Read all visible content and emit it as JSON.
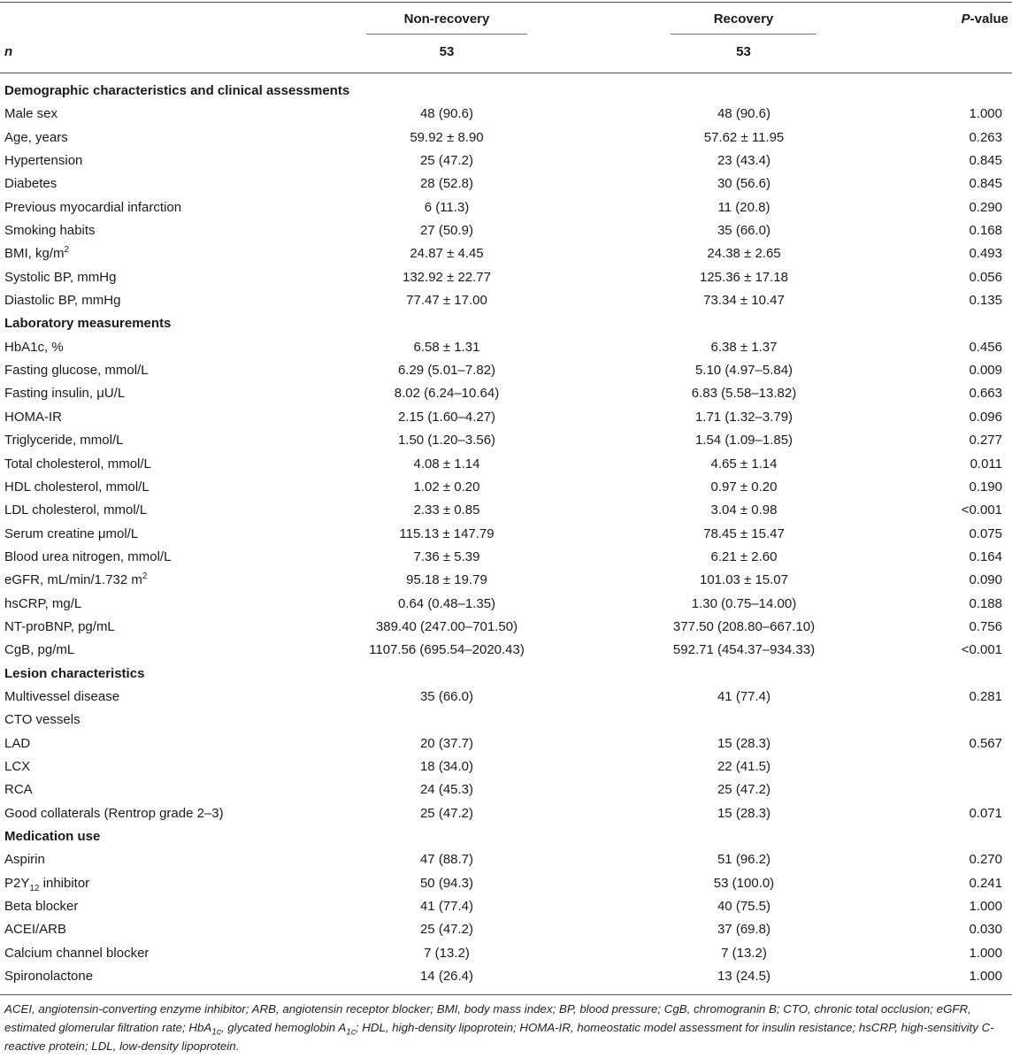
{
  "header": {
    "col_nonrecovery": "Non-recovery",
    "col_recovery": "Recovery",
    "col_p_italic": "P",
    "col_p_rest": "-value"
  },
  "n_row": {
    "label": "n",
    "nonrecovery": "53",
    "recovery": "53"
  },
  "rows": [
    {
      "section": true,
      "label": "Demographic characteristics and clinical assessments"
    },
    {
      "label": "Male sex",
      "nonrecovery": "48 (90.6)",
      "recovery": "48 (90.6)",
      "p": "1.000"
    },
    {
      "label": "Age, years",
      "nonrecovery": "59.92 ± 8.90",
      "recovery": "57.62 ± 11.95",
      "p": "0.263"
    },
    {
      "label": "Hypertension",
      "nonrecovery": "25 (47.2)",
      "recovery": "23 (43.4)",
      "p": "0.845"
    },
    {
      "label": "Diabetes",
      "nonrecovery": "28 (52.8)",
      "recovery": "30 (56.6)",
      "p": "0.845"
    },
    {
      "label": "Previous myocardial infarction",
      "nonrecovery": "6 (11.3)",
      "recovery": "11 (20.8)",
      "p": "0.290"
    },
    {
      "label": "Smoking habits",
      "nonrecovery": "27 (50.9)",
      "recovery": "35 (66.0)",
      "p": "0.168"
    },
    {
      "label": "BMI, kg/m",
      "sup": "2",
      "nonrecovery": "24.87 ± 4.45",
      "recovery": "24.38 ± 2.65",
      "p": "0.493"
    },
    {
      "label": "Systolic BP, mmHg",
      "nonrecovery": "132.92 ± 22.77",
      "recovery": "125.36 ± 17.18",
      "p": "0.056"
    },
    {
      "label": "Diastolic BP, mmHg",
      "nonrecovery": "77.47 ± 17.00",
      "recovery": "73.34 ± 10.47",
      "p": "0.135"
    },
    {
      "section": true,
      "label": "Laboratory measurements"
    },
    {
      "label": "HbA1c, %",
      "nonrecovery": "6.58 ± 1.31",
      "recovery": "6.38 ± 1.37",
      "p": "0.456"
    },
    {
      "label": "Fasting glucose, mmol/L",
      "nonrecovery": "6.29 (5.01–7.82)",
      "recovery": "5.10 (4.97–5.84)",
      "p": "0.009"
    },
    {
      "label": "Fasting insulin, μU/L",
      "nonrecovery": "8.02 (6.24–10.64)",
      "recovery": "6.83 (5.58–13.82)",
      "p": "0.663"
    },
    {
      "label": "HOMA-IR",
      "nonrecovery": "2.15 (1.60–4.27)",
      "recovery": "1.71 (1.32–3.79)",
      "p": "0.096"
    },
    {
      "label": "Triglyceride, mmol/L",
      "nonrecovery": "1.50 (1.20–3.56)",
      "recovery": "1.54 (1.09–1.85)",
      "p": "0.277"
    },
    {
      "label": "Total cholesterol, mmol/L",
      "nonrecovery": "4.08 ± 1.14",
      "recovery": "4.65 ± 1.14",
      "p": "0.011"
    },
    {
      "label": "HDL cholesterol, mmol/L",
      "nonrecovery": "1.02 ± 0.20",
      "recovery": "0.97 ± 0.20",
      "p": "0.190"
    },
    {
      "label": "LDL cholesterol, mmol/L",
      "nonrecovery": "2.33 ± 0.85",
      "recovery": "3.04 ± 0.98",
      "p": "<0.001"
    },
    {
      "label": "Serum creatine μmol/L",
      "nonrecovery": "115.13 ± 147.79",
      "recovery": "78.45 ± 15.47",
      "p": "0.075"
    },
    {
      "label": "Blood urea nitrogen, mmol/L",
      "nonrecovery": "7.36 ± 5.39",
      "recovery": "6.21 ± 2.60",
      "p": "0.164"
    },
    {
      "label": "eGFR, mL/min/1.732 m",
      "sup": "2",
      "nonrecovery": "95.18 ± 19.79",
      "recovery": "101.03 ± 15.07",
      "p": "0.090"
    },
    {
      "label": "hsCRP, mg/L",
      "nonrecovery": "0.64 (0.48–1.35)",
      "recovery": "1.30 (0.75–14.00)",
      "p": "0.188"
    },
    {
      "label": "NT-proBNP, pg/mL",
      "nonrecovery": "389.40 (247.00–701.50)",
      "recovery": "377.50 (208.80–667.10)",
      "p": "0.756"
    },
    {
      "label": "CgB, pg/mL",
      "nonrecovery": "1107.56 (695.54–2020.43)",
      "recovery": "592.71 (454.37–934.33)",
      "p": "<0.001"
    },
    {
      "section": true,
      "label": "Lesion characteristics"
    },
    {
      "label": "Multivessel disease",
      "nonrecovery": "35 (66.0)",
      "recovery": "41 (77.4)",
      "p": "0.281"
    },
    {
      "label": "CTO vessels",
      "nonrecovery": "",
      "recovery": "",
      "p": ""
    },
    {
      "label": "LAD",
      "nonrecovery": "20 (37.7)",
      "recovery": "15 (28.3)",
      "p": "0.567"
    },
    {
      "label": "LCX",
      "nonrecovery": "18 (34.0)",
      "recovery": "22 (41.5)",
      "p": ""
    },
    {
      "label": "RCA",
      "nonrecovery": "24 (45.3)",
      "recovery": "25 (47.2)",
      "p": ""
    },
    {
      "label": "Good collaterals (Rentrop grade 2–3)",
      "nonrecovery": "25 (47.2)",
      "recovery": "15 (28.3)",
      "p": "0.071"
    },
    {
      "section": true,
      "label": "Medication use"
    },
    {
      "label": "Aspirin",
      "nonrecovery": "47 (88.7)",
      "recovery": "51 (96.2)",
      "p": "0.270"
    },
    {
      "label": "P2Y",
      "sub": "12",
      "label_suffix": " inhibitor",
      "nonrecovery": "50 (94.3)",
      "recovery": "53 (100.0)",
      "p": "0.241"
    },
    {
      "label": "Beta blocker",
      "nonrecovery": "41 (77.4)",
      "recovery": "40 (75.5)",
      "p": "1.000"
    },
    {
      "label": "ACEI/ARB",
      "nonrecovery": "25 (47.2)",
      "recovery": "37 (69.8)",
      "p": "0.030"
    },
    {
      "label": "Calcium channel blocker",
      "nonrecovery": "7 (13.2)",
      "recovery": "7 (13.2)",
      "p": "1.000"
    },
    {
      "label": "Spironolactone",
      "nonrecovery": "14 (26.4)",
      "recovery": "13 (24.5)",
      "p": "1.000"
    }
  ],
  "footnote": {
    "part1": "ACEI, angiotensin-converting enzyme inhibitor; ARB, angiotensin receptor blocker; BMI, body mass index; BP, blood pressure; CgB, chromogranin B; CTO, chronic total occlusion; eGFR, estimated glomerular filtration rate; HbA",
    "sub1": "1c",
    "part2": ", glycated hemoglobin A",
    "sub2": "1c",
    "part3": "; HDL, high-density lipoprotein; HOMA-IR, homeostatic model assessment for insulin resistance; hsCRP, high-sensitivity C-reactive protein; LDL, low-density lipoprotein."
  }
}
